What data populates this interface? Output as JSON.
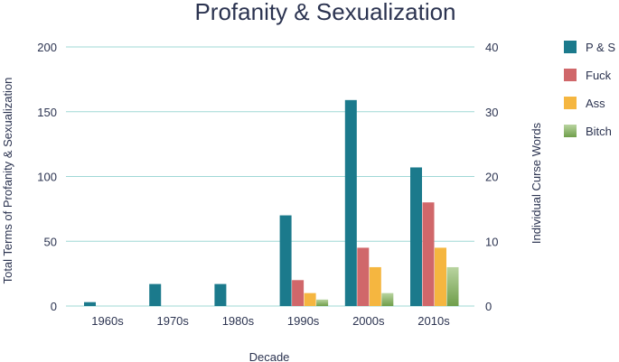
{
  "chart_data": {
    "type": "bar",
    "title": "Profanity & Sexualization",
    "xlabel": "Decade",
    "ylabel": "Total Terms of Profanity & Sexualization",
    "y2label": "Individual Curse Words",
    "categories": [
      "1960s",
      "1970s",
      "1980s",
      "1990s",
      "2000s",
      "2010s"
    ],
    "ylim": [
      0,
      200
    ],
    "y2lim": [
      0,
      40
    ],
    "yticks": [
      0,
      50,
      100,
      150,
      200
    ],
    "y2ticks": [
      0,
      10,
      20,
      30,
      40
    ],
    "grid": true,
    "legend_position": "right",
    "series": [
      {
        "name": "P & S",
        "axis": "left",
        "color": "#1b7a8c",
        "values": [
          3,
          17,
          17,
          70,
          159,
          107
        ]
      },
      {
        "name": "Fuck",
        "axis": "right",
        "color": "#d0676a",
        "values": [
          0,
          0,
          0,
          4,
          9,
          16
        ]
      },
      {
        "name": "Ass",
        "axis": "right",
        "color": "#f5b640",
        "values": [
          0,
          0,
          0,
          2,
          6,
          9
        ]
      },
      {
        "name": "Bitch",
        "axis": "right",
        "color": "#7ea85a",
        "values": [
          0,
          0,
          0,
          1,
          2,
          6
        ]
      }
    ]
  }
}
